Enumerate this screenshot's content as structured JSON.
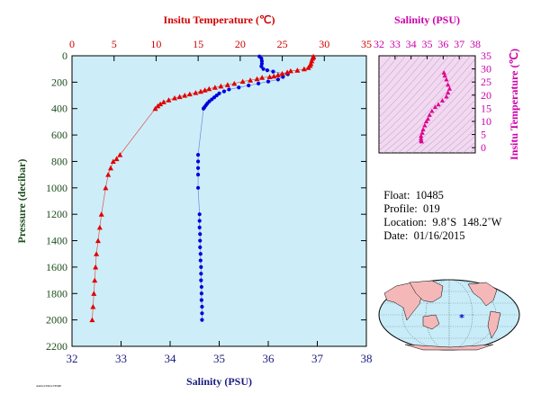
{
  "chart_data": [
    {
      "type": "scatter",
      "title": "",
      "top_axis": {
        "label": "Insitu Temperature (℃)",
        "ticks": [
          "0",
          "5",
          "10",
          "15",
          "20",
          "25",
          "30",
          "35"
        ],
        "range": [
          0,
          35
        ],
        "color": "#d00000"
      },
      "bottom_axis": {
        "label": "Salinity (PSU)",
        "ticks": [
          "32",
          "33",
          "34",
          "35",
          "36",
          "37",
          "38"
        ],
        "range": [
          32,
          38
        ],
        "color": "#0000cc"
      },
      "left_axis": {
        "label": "Pressure (decibar)",
        "ticks": [
          "0",
          "200",
          "400",
          "600",
          "800",
          "1000",
          "1200",
          "1400",
          "1600",
          "1800",
          "2000",
          "2200"
        ],
        "range": [
          0,
          2200
        ],
        "inverted": true
      },
      "grid": false,
      "background": "#cdeef8",
      "series": [
        {
          "color": "#e00000",
          "marker": "triangle",
          "connected": true,
          "points": [
            [
              28.7,
              5
            ],
            [
              28.7,
              10
            ],
            [
              28.6,
              20
            ],
            [
              28.5,
              40
            ],
            [
              28.4,
              60
            ],
            [
              28.3,
              75
            ],
            [
              28.1,
              90
            ],
            [
              27.6,
              100
            ],
            [
              26.8,
              110
            ],
            [
              26.0,
              115
            ],
            [
              25.6,
              125
            ],
            [
              25.0,
              135
            ],
            [
              24.5,
              145
            ],
            [
              24.0,
              155
            ],
            [
              23.5,
              160
            ],
            [
              22.6,
              165
            ],
            [
              22.0,
              175
            ],
            [
              21.2,
              185
            ],
            [
              20.3,
              195
            ],
            [
              19.3,
              210
            ],
            [
              18.5,
              220
            ],
            [
              17.7,
              230
            ],
            [
              17.0,
              240
            ],
            [
              16.3,
              250
            ],
            [
              15.8,
              260
            ],
            [
              15.3,
              270
            ],
            [
              14.7,
              280
            ],
            [
              14.0,
              290
            ],
            [
              13.4,
              300
            ],
            [
              12.8,
              310
            ],
            [
              12.2,
              320
            ],
            [
              11.5,
              335
            ],
            [
              10.9,
              350
            ],
            [
              10.5,
              365
            ],
            [
              10.2,
              380
            ],
            [
              9.9,
              400
            ],
            [
              5.7,
              750
            ],
            [
              5.3,
              780
            ],
            [
              4.9,
              800
            ],
            [
              4.6,
              850
            ],
            [
              4.3,
              900
            ],
            [
              4.0,
              1000
            ],
            [
              3.5,
              1200
            ],
            [
              3.3,
              1300
            ],
            [
              3.1,
              1400
            ],
            [
              2.9,
              1500
            ],
            [
              2.8,
              1600
            ],
            [
              2.7,
              1700
            ],
            [
              2.6,
              1800
            ],
            [
              2.5,
              1900
            ],
            [
              2.4,
              2000
            ]
          ]
        },
        {
          "color": "#0000dd",
          "marker": "circle",
          "connected": true,
          "points": [
            [
              35.82,
              5
            ],
            [
              35.86,
              20
            ],
            [
              35.87,
              40
            ],
            [
              35.87,
              60
            ],
            [
              35.86,
              80
            ],
            [
              35.9,
              100
            ],
            [
              35.98,
              110
            ],
            [
              36.1,
              120
            ],
            [
              36.4,
              140
            ],
            [
              36.3,
              160
            ],
            [
              36.2,
              180
            ],
            [
              36.0,
              195
            ],
            [
              35.8,
              210
            ],
            [
              35.6,
              225
            ],
            [
              35.4,
              240
            ],
            [
              35.2,
              255
            ],
            [
              35.1,
              270
            ],
            [
              35.0,
              285
            ],
            [
              34.95,
              300
            ],
            [
              34.9,
              315
            ],
            [
              34.85,
              330
            ],
            [
              34.8,
              345
            ],
            [
              34.76,
              360
            ],
            [
              34.73,
              375
            ],
            [
              34.7,
              390
            ],
            [
              34.68,
              400
            ],
            [
              34.57,
              750
            ],
            [
              34.57,
              800
            ],
            [
              34.57,
              850
            ],
            [
              34.57,
              900
            ],
            [
              34.57,
              1000
            ],
            [
              34.6,
              1200
            ],
            [
              34.6,
              1250
            ],
            [
              34.6,
              1300
            ],
            [
              34.61,
              1350
            ],
            [
              34.61,
              1400
            ],
            [
              34.61,
              1450
            ],
            [
              34.62,
              1500
            ],
            [
              34.62,
              1550
            ],
            [
              34.63,
              1600
            ],
            [
              34.63,
              1650
            ],
            [
              34.63,
              1700
            ],
            [
              34.64,
              1750
            ],
            [
              34.64,
              1800
            ],
            [
              34.64,
              1850
            ],
            [
              34.65,
              1900
            ],
            [
              34.65,
              1950
            ],
            [
              34.65,
              2000
            ]
          ]
        }
      ]
    },
    {
      "type": "scatter",
      "title": "",
      "top_axis": {
        "label": "Salinity (PSU)",
        "ticks": [
          "32",
          "33",
          "34",
          "35",
          "36",
          "37",
          "38"
        ],
        "range": [
          32,
          38
        ],
        "color": "#cc00aa"
      },
      "right_axis": {
        "label": "Insitu Temperature (℃)",
        "ticks": [
          "0",
          "5",
          "10",
          "15",
          "20",
          "25",
          "30",
          "35"
        ],
        "range": [
          -2,
          35
        ],
        "color": "#cc00aa"
      },
      "background": "#f4d8f2",
      "series": [
        {
          "color": "#e0008f",
          "marker": "triangle",
          "points": [
            [
              36.05,
              28.6
            ],
            [
              36.1,
              27.5
            ],
            [
              36.2,
              26.0
            ],
            [
              36.3,
              24.0
            ],
            [
              36.4,
              22.5
            ],
            [
              36.3,
              21.0
            ],
            [
              36.2,
              19.5
            ],
            [
              35.95,
              18.0
            ],
            [
              35.7,
              16.5
            ],
            [
              35.5,
              15.5
            ],
            [
              35.3,
              14.0
            ],
            [
              35.15,
              12.5
            ],
            [
              35.05,
              11.0
            ],
            [
              34.95,
              10.0
            ],
            [
              34.85,
              8.5
            ],
            [
              34.75,
              7.0
            ],
            [
              34.7,
              5.7
            ],
            [
              34.62,
              4.5
            ],
            [
              34.62,
              3.5
            ],
            [
              34.63,
              2.8
            ],
            [
              34.65,
              2.4
            ]
          ]
        }
      ]
    }
  ],
  "info": {
    "float_label": "Float:",
    "float_value": "10485",
    "profile_label": "Profile:",
    "profile_value": "019",
    "location_label": "Location:",
    "location_value": "9.8˚S  148.2˚W",
    "date_label": "Date:",
    "date_value": "01/16/2015"
  },
  "map": {
    "marker": "*",
    "ocean": "#c8ecf8",
    "land": "#f4b8b8"
  },
  "footer_tag": "ARGO/JMA/TEMP"
}
